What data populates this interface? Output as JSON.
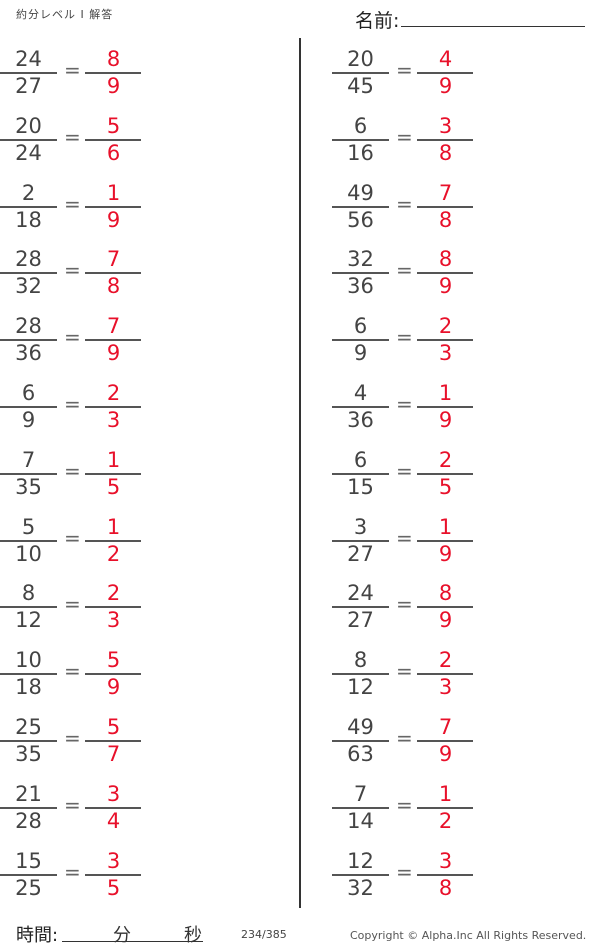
{
  "header": {
    "title": "約分レベル I 解答",
    "name_label": "名前:"
  },
  "left_problems": [
    {
      "n": "24",
      "d": "27",
      "an": "8",
      "ad": "9"
    },
    {
      "n": "20",
      "d": "24",
      "an": "5",
      "ad": "6"
    },
    {
      "n": "2",
      "d": "18",
      "an": "1",
      "ad": "9"
    },
    {
      "n": "28",
      "d": "32",
      "an": "7",
      "ad": "8"
    },
    {
      "n": "28",
      "d": "36",
      "an": "7",
      "ad": "9"
    },
    {
      "n": "6",
      "d": "9",
      "an": "2",
      "ad": "3"
    },
    {
      "n": "7",
      "d": "35",
      "an": "1",
      "ad": "5"
    },
    {
      "n": "5",
      "d": "10",
      "an": "1",
      "ad": "2"
    },
    {
      "n": "8",
      "d": "12",
      "an": "2",
      "ad": "3"
    },
    {
      "n": "10",
      "d": "18",
      "an": "5",
      "ad": "9"
    },
    {
      "n": "25",
      "d": "35",
      "an": "5",
      "ad": "7"
    },
    {
      "n": "21",
      "d": "28",
      "an": "3",
      "ad": "4"
    },
    {
      "n": "15",
      "d": "25",
      "an": "3",
      "ad": "5"
    }
  ],
  "right_problems": [
    {
      "n": "20",
      "d": "45",
      "an": "4",
      "ad": "9"
    },
    {
      "n": "6",
      "d": "16",
      "an": "3",
      "ad": "8"
    },
    {
      "n": "49",
      "d": "56",
      "an": "7",
      "ad": "8"
    },
    {
      "n": "32",
      "d": "36",
      "an": "8",
      "ad": "9"
    },
    {
      "n": "6",
      "d": "9",
      "an": "2",
      "ad": "3"
    },
    {
      "n": "4",
      "d": "36",
      "an": "1",
      "ad": "9"
    },
    {
      "n": "6",
      "d": "15",
      "an": "2",
      "ad": "5"
    },
    {
      "n": "3",
      "d": "27",
      "an": "1",
      "ad": "9"
    },
    {
      "n": "24",
      "d": "27",
      "an": "8",
      "ad": "9"
    },
    {
      "n": "8",
      "d": "12",
      "an": "2",
      "ad": "3"
    },
    {
      "n": "49",
      "d": "63",
      "an": "7",
      "ad": "9"
    },
    {
      "n": "7",
      "d": "14",
      "an": "1",
      "ad": "2"
    },
    {
      "n": "12",
      "d": "32",
      "an": "3",
      "ad": "8"
    }
  ],
  "equals": "=",
  "footer": {
    "time_label": "時間:",
    "minutes_label": "分",
    "seconds_label": "秒",
    "page": "234/385",
    "copyright": "Copyright ©  Alpha.Inc All Rights Reserved."
  },
  "colors": {
    "answer": "#e8102a",
    "question": "#444444"
  }
}
